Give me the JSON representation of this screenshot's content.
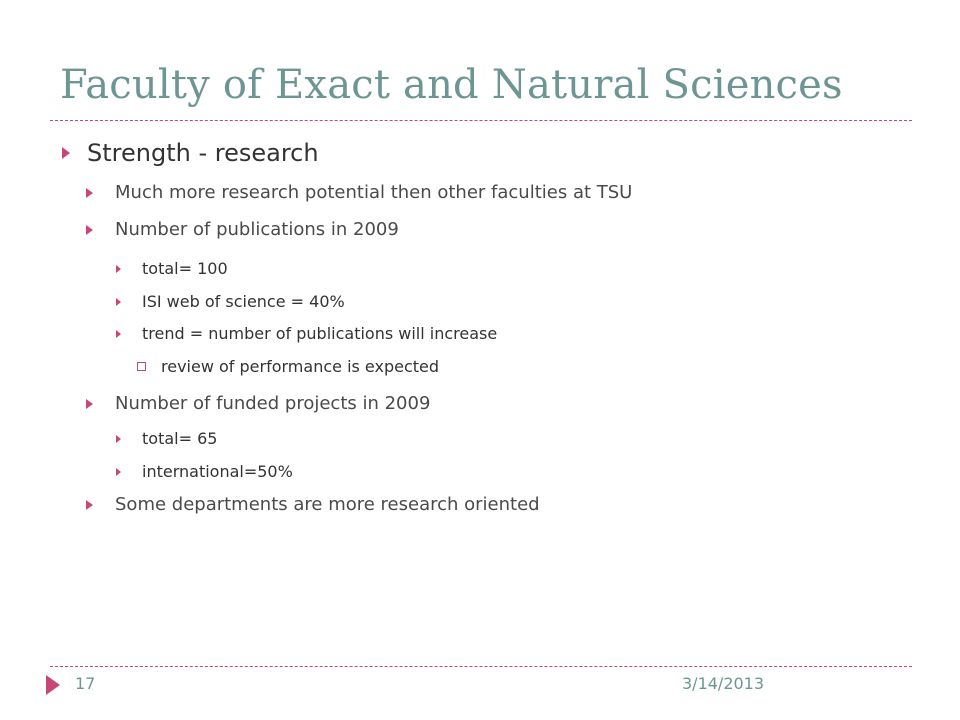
{
  "slide": {
    "title": "Faculty of Exact and Natural Sciences",
    "bullets": [
      {
        "level": 1,
        "marker": "triangle",
        "text": "Strength - research"
      },
      {
        "level": 2,
        "marker": "triangle",
        "text": "Much more research potential then other faculties at TSU"
      },
      {
        "level": 2,
        "marker": "triangle",
        "text": "Number of publications in 2009"
      },
      {
        "level": 3,
        "marker": "triangle",
        "text": "total= 100"
      },
      {
        "level": 3,
        "marker": "triangle",
        "text": "ISI web of science = 40%"
      },
      {
        "level": 3,
        "marker": "triangle",
        "text": "trend = number of publications will increase"
      },
      {
        "level": 4,
        "marker": "square",
        "text": "review of performance is expected"
      },
      {
        "level": 2,
        "marker": "triangle",
        "text": " Number of funded projects in 2009"
      },
      {
        "level": 3,
        "marker": "triangle",
        "text": "total= 65"
      },
      {
        "level": 3,
        "marker": "triangle",
        "text": "international=50%"
      },
      {
        "level": 2,
        "marker": "triangle",
        "text": "Some departments are more research oriented"
      }
    ],
    "footer": {
      "page_number": "17",
      "date": "3/14/2013"
    }
  },
  "colors": {
    "title": "#6d9693",
    "accent": "#c8467a",
    "body_text": "#444444",
    "background": "#ffffff"
  },
  "icons": {
    "bullet_marker": "triangle-right-icon",
    "sub_sub_marker": "hollow-square-icon",
    "footer_marker": "triangle-right-icon"
  }
}
